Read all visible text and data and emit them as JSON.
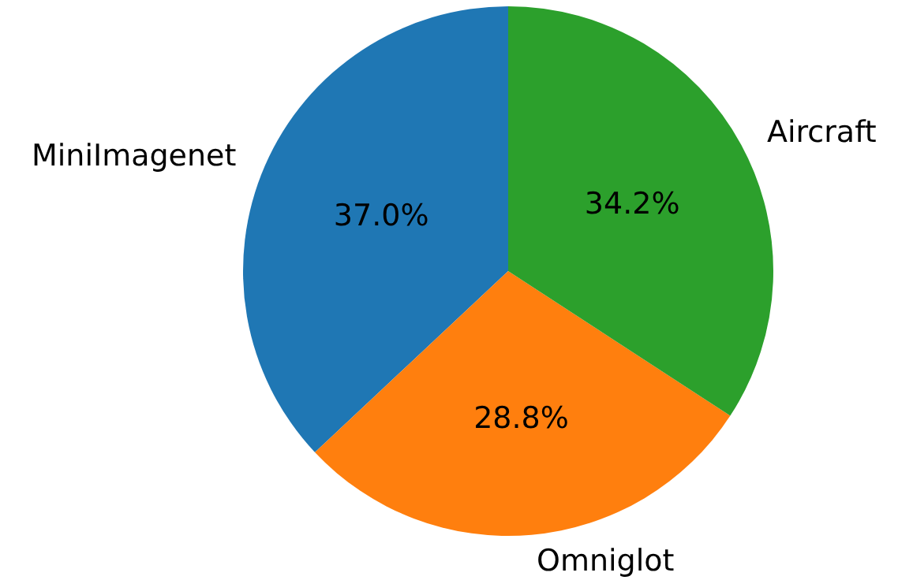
{
  "chart_data": {
    "type": "pie",
    "categories": [
      "MiniImagenet",
      "Omniglot",
      "Aircraft"
    ],
    "values": [
      37.0,
      28.8,
      34.2
    ],
    "colors": [
      "#1f77b4",
      "#ff7f0e",
      "#2ca02c"
    ],
    "value_labels": [
      "37.0%",
      "28.8%",
      "34.2%"
    ],
    "legend": false
  }
}
